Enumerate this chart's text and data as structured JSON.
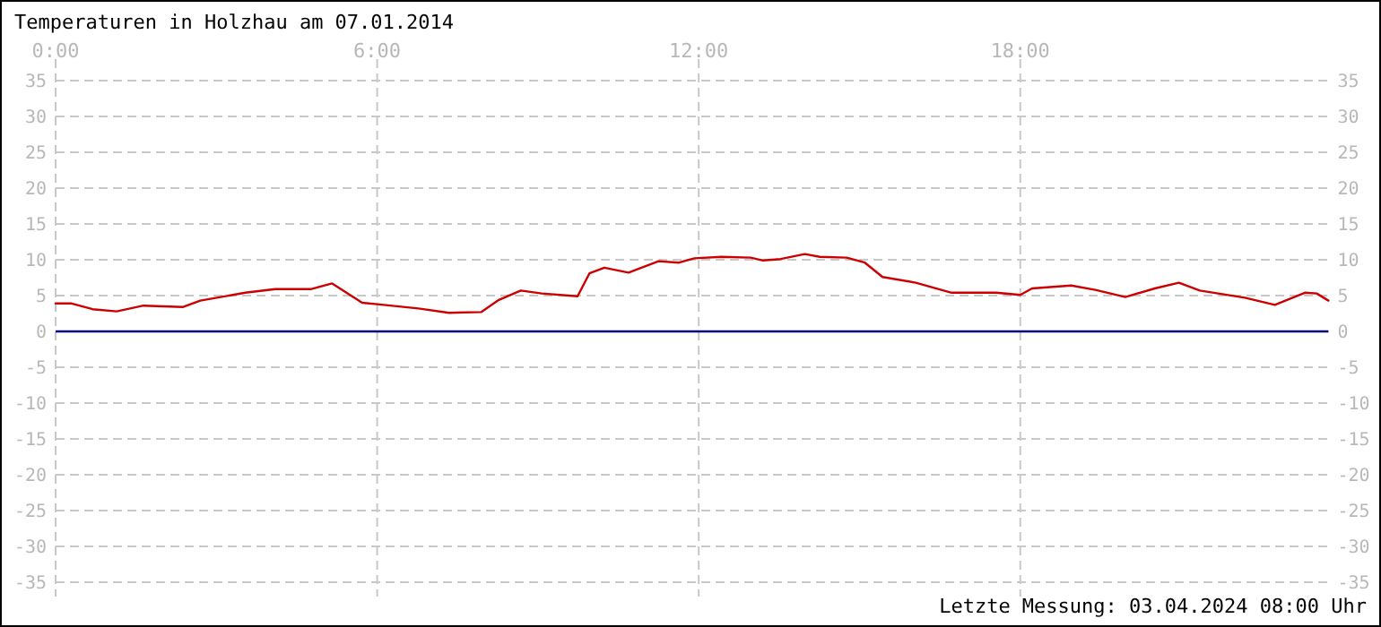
{
  "chart_data": {
    "type": "line",
    "title": "Temperaturen in Holzhau am 07.01.2014",
    "annotations": [
      "Letzte Messung: 03.04.2024 08:00 Uhr"
    ],
    "x": [
      0,
      0.3,
      0.69,
      1.14,
      1.64,
      2.37,
      2.7,
      3.54,
      4.1,
      4.76,
      5.16,
      5.72,
      6.0,
      6.77,
      7.34,
      7.94,
      8.27,
      8.68,
      9.07,
      9.74,
      9.96,
      10.24,
      10.69,
      11.25,
      11.63,
      11.92,
      12.42,
      12.97,
      13.2,
      13.53,
      13.98,
      14.26,
      14.76,
      15.1,
      15.43,
      16.05,
      16.72,
      17.55,
      18.0,
      18.22,
      18.95,
      19.4,
      19.96,
      20.51,
      20.96,
      21.35,
      22.19,
      22.75,
      23.31,
      23.53,
      23.75
    ],
    "series": [
      {
        "color": "#cc0000",
        "values": [
          3.9,
          3.9,
          3.1,
          2.8,
          3.6,
          3.4,
          4.3,
          5.4,
          5.9,
          5.9,
          6.7,
          4.0,
          3.8,
          3.2,
          2.6,
          2.7,
          4.4,
          5.7,
          5.3,
          4.9,
          8.1,
          8.9,
          8.2,
          9.8,
          9.6,
          10.2,
          10.4,
          10.3,
          9.9,
          10.1,
          10.8,
          10.4,
          10.3,
          9.6,
          7.6,
          6.8,
          5.4,
          5.4,
          5.1,
          6.0,
          6.4,
          5.8,
          4.8,
          6.0,
          6.8,
          5.7,
          4.7,
          3.7,
          5.4,
          5.3,
          4.3
        ]
      }
    ],
    "xlim": [
      0,
      23.75
    ],
    "xticks": [
      {
        "value": 0,
        "label": "0:00"
      },
      {
        "value": 6,
        "label": "6:00"
      },
      {
        "value": 12,
        "label": "12:00"
      },
      {
        "value": 18,
        "label": "18:00"
      }
    ],
    "ylim": [
      -35,
      35
    ],
    "yticks": [
      -35,
      -30,
      -25,
      -20,
      -15,
      -10,
      -5,
      0,
      5,
      10,
      15,
      20,
      25,
      30,
      35
    ],
    "y2lim": [
      -35,
      35
    ],
    "y2ticks": [
      -35,
      -30,
      -25,
      -20,
      -15,
      -10,
      -5,
      0,
      5,
      10,
      15,
      20,
      25,
      30,
      35
    ],
    "grid": true,
    "line_style": "solid",
    "marker": "none",
    "ref_lines": [
      {
        "axis": "y",
        "value": 0,
        "color": "#000080"
      }
    ]
  }
}
